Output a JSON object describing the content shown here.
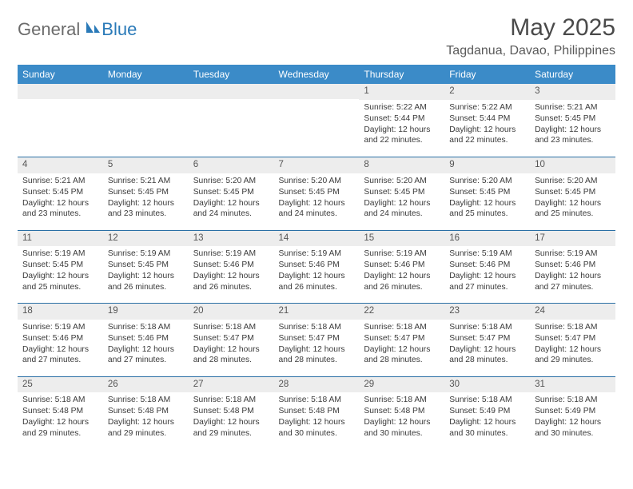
{
  "logo": {
    "general": "General",
    "blue": "Blue"
  },
  "title": "May 2025",
  "location": "Tagdanua, Davao, Philippines",
  "colors": {
    "header_bg": "#3b8bc8",
    "header_text": "#ffffff",
    "daynum_bg": "#ededed",
    "daynum_text": "#555555",
    "body_text": "#3a3a3a",
    "rule": "#2a6fa5",
    "logo_gray": "#6b6b6b",
    "logo_blue": "#2a7ab8",
    "title_color": "#4a4a4a"
  },
  "typography": {
    "title_fontsize": 30,
    "location_fontsize": 16,
    "header_fontsize": 12,
    "daynum_fontsize": 11.5,
    "detail_fontsize": 10.3
  },
  "weekdays": [
    "Sunday",
    "Monday",
    "Tuesday",
    "Wednesday",
    "Thursday",
    "Friday",
    "Saturday"
  ],
  "weeks": [
    [
      {
        "blank": true
      },
      {
        "blank": true
      },
      {
        "blank": true
      },
      {
        "blank": true
      },
      {
        "num": "1",
        "sunrise": "Sunrise: 5:22 AM",
        "sunset": "Sunset: 5:44 PM",
        "day1": "Daylight: 12 hours",
        "day2": "and 22 minutes."
      },
      {
        "num": "2",
        "sunrise": "Sunrise: 5:22 AM",
        "sunset": "Sunset: 5:44 PM",
        "day1": "Daylight: 12 hours",
        "day2": "and 22 minutes."
      },
      {
        "num": "3",
        "sunrise": "Sunrise: 5:21 AM",
        "sunset": "Sunset: 5:45 PM",
        "day1": "Daylight: 12 hours",
        "day2": "and 23 minutes."
      }
    ],
    [
      {
        "num": "4",
        "sunrise": "Sunrise: 5:21 AM",
        "sunset": "Sunset: 5:45 PM",
        "day1": "Daylight: 12 hours",
        "day2": "and 23 minutes."
      },
      {
        "num": "5",
        "sunrise": "Sunrise: 5:21 AM",
        "sunset": "Sunset: 5:45 PM",
        "day1": "Daylight: 12 hours",
        "day2": "and 23 minutes."
      },
      {
        "num": "6",
        "sunrise": "Sunrise: 5:20 AM",
        "sunset": "Sunset: 5:45 PM",
        "day1": "Daylight: 12 hours",
        "day2": "and 24 minutes."
      },
      {
        "num": "7",
        "sunrise": "Sunrise: 5:20 AM",
        "sunset": "Sunset: 5:45 PM",
        "day1": "Daylight: 12 hours",
        "day2": "and 24 minutes."
      },
      {
        "num": "8",
        "sunrise": "Sunrise: 5:20 AM",
        "sunset": "Sunset: 5:45 PM",
        "day1": "Daylight: 12 hours",
        "day2": "and 24 minutes."
      },
      {
        "num": "9",
        "sunrise": "Sunrise: 5:20 AM",
        "sunset": "Sunset: 5:45 PM",
        "day1": "Daylight: 12 hours",
        "day2": "and 25 minutes."
      },
      {
        "num": "10",
        "sunrise": "Sunrise: 5:20 AM",
        "sunset": "Sunset: 5:45 PM",
        "day1": "Daylight: 12 hours",
        "day2": "and 25 minutes."
      }
    ],
    [
      {
        "num": "11",
        "sunrise": "Sunrise: 5:19 AM",
        "sunset": "Sunset: 5:45 PM",
        "day1": "Daylight: 12 hours",
        "day2": "and 25 minutes."
      },
      {
        "num": "12",
        "sunrise": "Sunrise: 5:19 AM",
        "sunset": "Sunset: 5:45 PM",
        "day1": "Daylight: 12 hours",
        "day2": "and 26 minutes."
      },
      {
        "num": "13",
        "sunrise": "Sunrise: 5:19 AM",
        "sunset": "Sunset: 5:46 PM",
        "day1": "Daylight: 12 hours",
        "day2": "and 26 minutes."
      },
      {
        "num": "14",
        "sunrise": "Sunrise: 5:19 AM",
        "sunset": "Sunset: 5:46 PM",
        "day1": "Daylight: 12 hours",
        "day2": "and 26 minutes."
      },
      {
        "num": "15",
        "sunrise": "Sunrise: 5:19 AM",
        "sunset": "Sunset: 5:46 PM",
        "day1": "Daylight: 12 hours",
        "day2": "and 26 minutes."
      },
      {
        "num": "16",
        "sunrise": "Sunrise: 5:19 AM",
        "sunset": "Sunset: 5:46 PM",
        "day1": "Daylight: 12 hours",
        "day2": "and 27 minutes."
      },
      {
        "num": "17",
        "sunrise": "Sunrise: 5:19 AM",
        "sunset": "Sunset: 5:46 PM",
        "day1": "Daylight: 12 hours",
        "day2": "and 27 minutes."
      }
    ],
    [
      {
        "num": "18",
        "sunrise": "Sunrise: 5:19 AM",
        "sunset": "Sunset: 5:46 PM",
        "day1": "Daylight: 12 hours",
        "day2": "and 27 minutes."
      },
      {
        "num": "19",
        "sunrise": "Sunrise: 5:18 AM",
        "sunset": "Sunset: 5:46 PM",
        "day1": "Daylight: 12 hours",
        "day2": "and 27 minutes."
      },
      {
        "num": "20",
        "sunrise": "Sunrise: 5:18 AM",
        "sunset": "Sunset: 5:47 PM",
        "day1": "Daylight: 12 hours",
        "day2": "and 28 minutes."
      },
      {
        "num": "21",
        "sunrise": "Sunrise: 5:18 AM",
        "sunset": "Sunset: 5:47 PM",
        "day1": "Daylight: 12 hours",
        "day2": "and 28 minutes."
      },
      {
        "num": "22",
        "sunrise": "Sunrise: 5:18 AM",
        "sunset": "Sunset: 5:47 PM",
        "day1": "Daylight: 12 hours",
        "day2": "and 28 minutes."
      },
      {
        "num": "23",
        "sunrise": "Sunrise: 5:18 AM",
        "sunset": "Sunset: 5:47 PM",
        "day1": "Daylight: 12 hours",
        "day2": "and 28 minutes."
      },
      {
        "num": "24",
        "sunrise": "Sunrise: 5:18 AM",
        "sunset": "Sunset: 5:47 PM",
        "day1": "Daylight: 12 hours",
        "day2": "and 29 minutes."
      }
    ],
    [
      {
        "num": "25",
        "sunrise": "Sunrise: 5:18 AM",
        "sunset": "Sunset: 5:48 PM",
        "day1": "Daylight: 12 hours",
        "day2": "and 29 minutes."
      },
      {
        "num": "26",
        "sunrise": "Sunrise: 5:18 AM",
        "sunset": "Sunset: 5:48 PM",
        "day1": "Daylight: 12 hours",
        "day2": "and 29 minutes."
      },
      {
        "num": "27",
        "sunrise": "Sunrise: 5:18 AM",
        "sunset": "Sunset: 5:48 PM",
        "day1": "Daylight: 12 hours",
        "day2": "and 29 minutes."
      },
      {
        "num": "28",
        "sunrise": "Sunrise: 5:18 AM",
        "sunset": "Sunset: 5:48 PM",
        "day1": "Daylight: 12 hours",
        "day2": "and 30 minutes."
      },
      {
        "num": "29",
        "sunrise": "Sunrise: 5:18 AM",
        "sunset": "Sunset: 5:48 PM",
        "day1": "Daylight: 12 hours",
        "day2": "and 30 minutes."
      },
      {
        "num": "30",
        "sunrise": "Sunrise: 5:18 AM",
        "sunset": "Sunset: 5:49 PM",
        "day1": "Daylight: 12 hours",
        "day2": "and 30 minutes."
      },
      {
        "num": "31",
        "sunrise": "Sunrise: 5:18 AM",
        "sunset": "Sunset: 5:49 PM",
        "day1": "Daylight: 12 hours",
        "day2": "and 30 minutes."
      }
    ]
  ]
}
